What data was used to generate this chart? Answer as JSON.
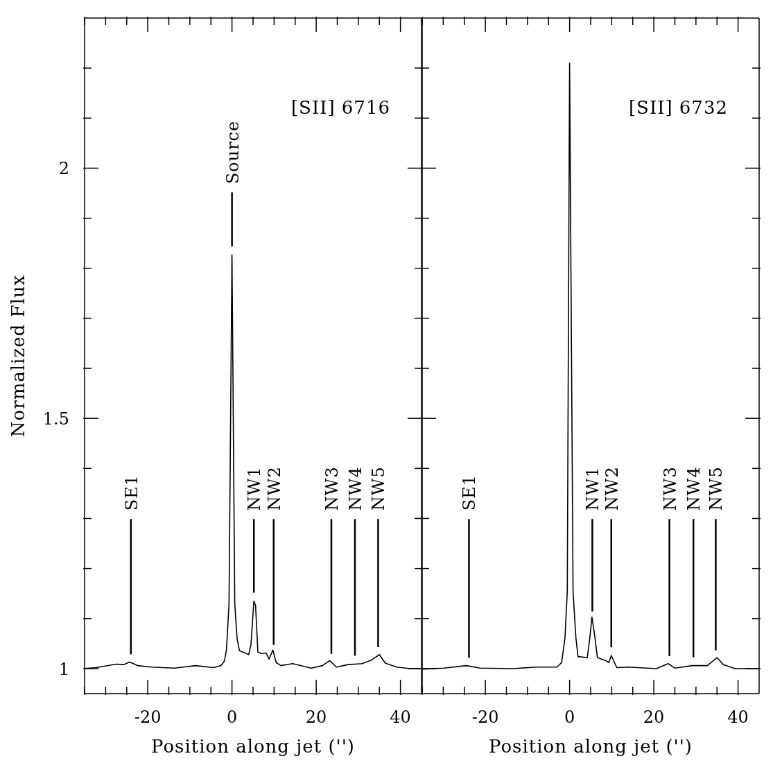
{
  "chart_data": [
    {
      "type": "line",
      "title": "[SII] 6716",
      "xlabel": "Position along jet ('')",
      "ylabel": "Normalized Flux",
      "xlim": [
        -35,
        45
      ],
      "ylim": [
        0.95,
        2.3
      ],
      "xticks": [
        {
          "value": -35,
          "label": null
        },
        {
          "value": -30,
          "label": null
        },
        {
          "value": -25,
          "label": null
        },
        -20,
        {
          "value": -15,
          "label": null
        },
        {
          "value": -10,
          "label": null
        },
        {
          "value": -5,
          "label": null
        },
        0,
        {
          "value": 5,
          "label": null
        },
        {
          "value": 10,
          "label": null
        },
        {
          "value": 15,
          "label": null
        },
        20,
        {
          "value": 25,
          "label": null
        },
        {
          "value": 30,
          "label": null
        },
        {
          "value": 35,
          "label": null
        },
        40
      ],
      "yticks": [
        1,
        {
          "value": 1.1,
          "label": null
        },
        {
          "value": 1.2,
          "label": null
        },
        {
          "value": 1.3,
          "label": null
        },
        {
          "value": 1.4,
          "label": null
        },
        1.5,
        {
          "value": 1.6,
          "label": null
        },
        {
          "value": 1.7,
          "label": null
        },
        {
          "value": 1.8,
          "label": null
        },
        {
          "value": 1.9,
          "label": null
        },
        2,
        {
          "value": 2.1,
          "label": null
        },
        {
          "value": 2.2,
          "label": null
        }
      ],
      "marker": "none",
      "line_style": "solid",
      "series": [
        {
          "color": "#000000",
          "x": [
            -35,
            -32.3,
            -27.4,
            -25.7,
            -24.3,
            -22.4,
            -19.1,
            -13.6,
            -8.7,
            -4.3,
            -2.6,
            -1.8,
            -1.3,
            -0.7,
            0,
            0.66,
            1.2,
            1.76,
            3.96,
            4.5,
            5.2,
            5.6,
            6.15,
            7.0,
            8.1,
            8.8,
            9.7,
            10.5,
            11.6,
            14.4,
            18.8,
            21.5,
            23.2,
            24.8,
            27.6,
            30.9,
            33.1,
            35.0,
            36.4,
            39.1,
            42.4,
            44.9
          ],
          "values": [
            1.0,
            1.002,
            1.009,
            1.008,
            1.013,
            1.006,
            1.003,
            1.001,
            1.006,
            1.002,
            1.006,
            1.015,
            1.038,
            1.13,
            1.827,
            1.13,
            1.061,
            1.036,
            1.028,
            1.047,
            1.135,
            1.126,
            1.033,
            1.03,
            1.031,
            1.019,
            1.037,
            1.012,
            1.006,
            1.01,
            1.001,
            1.006,
            1.016,
            1.003,
            1.008,
            1.01,
            1.017,
            1.028,
            1.011,
            1.003,
            1.0,
            1.0
          ]
        }
      ],
      "ref_lines": [
        {
          "axis": "x",
          "value": 0,
          "label": "Source"
        },
        {
          "axis": "x",
          "value": -24,
          "label": "SE1"
        },
        {
          "axis": "x",
          "value": 5.2,
          "label": "NW1"
        },
        {
          "axis": "x",
          "value": 9.9,
          "label": "NW2"
        },
        {
          "axis": "x",
          "value": 23.6,
          "label": "NW3"
        },
        {
          "axis": "x",
          "value": 29.2,
          "label": "NW4"
        },
        {
          "axis": "x",
          "value": 34.7,
          "label": "NW5"
        }
      ]
    },
    {
      "type": "line",
      "title": "[SII] 6732",
      "xlabel": "Position along jet ('')",
      "xlim": [
        -35,
        45
      ],
      "ylim": [
        0.95,
        2.3
      ],
      "tick_labels": "x",
      "xticks": [
        {
          "value": -35,
          "label": null
        },
        {
          "value": -30,
          "label": null
        },
        {
          "value": -25,
          "label": null
        },
        -20,
        {
          "value": -15,
          "label": null
        },
        {
          "value": -10,
          "label": null
        },
        {
          "value": -5,
          "label": null
        },
        0,
        {
          "value": 5,
          "label": null
        },
        {
          "value": 10,
          "label": null
        },
        {
          "value": 15,
          "label": null
        },
        20,
        {
          "value": 25,
          "label": null
        },
        {
          "value": 30,
          "label": null
        },
        {
          "value": 35,
          "label": null
        },
        40
      ],
      "yticks": [
        1,
        {
          "value": 1.1,
          "label": null
        },
        {
          "value": 1.2,
          "label": null
        },
        {
          "value": 1.3,
          "label": null
        },
        {
          "value": 1.4,
          "label": null
        },
        1.5,
        {
          "value": 1.6,
          "label": null
        },
        {
          "value": 1.7,
          "label": null
        },
        {
          "value": 1.8,
          "label": null
        },
        {
          "value": 1.9,
          "label": null
        },
        2,
        {
          "value": 2.1,
          "label": null
        },
        {
          "value": 2.2,
          "label": null
        }
      ],
      "marker": "none",
      "line_style": "solid",
      "series": [
        {
          "color": "#000000",
          "x": [
            -35,
            -29.9,
            -24.5,
            -21.2,
            -13.5,
            -8,
            -3.0,
            -1.9,
            -1.1,
            -0.55,
            0,
            0.82,
            1.5,
            2.0,
            4.2,
            4.8,
            5.3,
            5.9,
            6.6,
            8.8,
            9.3,
            9.9,
            11.2,
            14,
            20.6,
            23.4,
            25,
            29.1,
            32.7,
            35,
            36.5,
            39.3,
            45
          ],
          "values": [
            0.999,
            1.001,
            1.006,
            1.001,
            1.0,
            1.003,
            1.003,
            1.012,
            1.061,
            1.154,
            2.21,
            1.154,
            1.061,
            1.024,
            1.022,
            1.061,
            1.103,
            1.07,
            1.022,
            1.015,
            1.012,
            1.026,
            1.002,
            1.003,
            1.0,
            1.01,
            1.001,
            1.006,
            1.006,
            1.022,
            1.008,
            1.0,
            1.0
          ]
        }
      ],
      "ref_lines": [
        {
          "axis": "x",
          "value": -23.9,
          "label": "SE1"
        },
        {
          "axis": "x",
          "value": 5.4,
          "label": "NW1"
        },
        {
          "axis": "x",
          "value": 9.9,
          "label": "NW2"
        },
        {
          "axis": "x",
          "value": 23.7,
          "label": "NW3"
        },
        {
          "axis": "x",
          "value": 29.4,
          "label": "NW4"
        },
        {
          "axis": "x",
          "value": 34.7,
          "label": "NW5"
        }
      ]
    }
  ]
}
